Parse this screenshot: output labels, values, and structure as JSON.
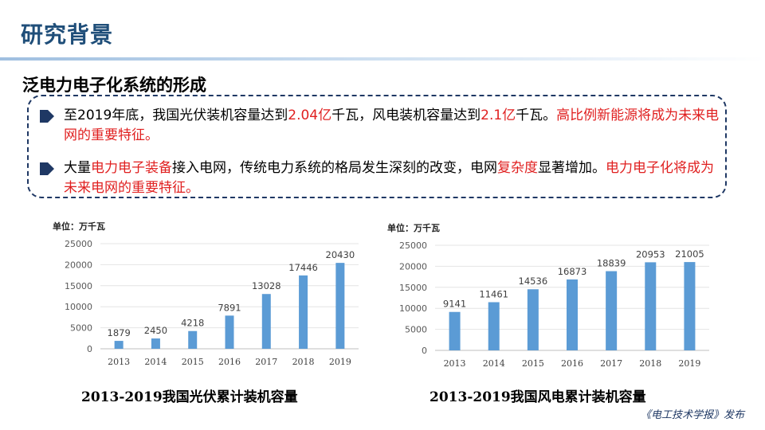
{
  "slide": {
    "title": "研究背景",
    "subtitle": "泛电力电子化系统的形成",
    "bullet1": {
      "p1": "至2019年底，我国光伏装机容量达到",
      "v1": "2.04亿",
      "p2": "千瓦，风电装机容量达到",
      "v2": "2.1亿",
      "p3": "千瓦。",
      "p4": "高比例新能源将成为未来电网的重要特征。"
    },
    "bullet2": {
      "p1": "大量",
      "v1": "电力电子装备",
      "p2": "接入电网，传统电力系统的格局发生深刻的改变，电网",
      "v2": "复杂度",
      "p3": "显著增加。",
      "p4": "电力电子化将成为未来电网的重要特征。"
    },
    "publisher": "《电工技术学报》发布",
    "accent_color": "#e02020",
    "bar_color": "#5b9bd5"
  },
  "chart_data": [
    {
      "type": "bar",
      "title": "2013-2019我国光伏累计装机容量",
      "unit_label": "单位：万千瓦",
      "categories": [
        "2013",
        "2014",
        "2015",
        "2016",
        "2017",
        "2018",
        "2019"
      ],
      "values": [
        1879,
        2450,
        4218,
        7891,
        13028,
        17446,
        20430
      ],
      "ylim": [
        0,
        25000
      ],
      "yticks": [
        0,
        5000,
        10000,
        15000,
        20000,
        25000
      ],
      "grid": true,
      "legend": "none"
    },
    {
      "type": "bar",
      "title": "2013-2019我国风电累计装机容量",
      "unit_label": "单位：万千瓦",
      "categories": [
        "2013",
        "2014",
        "2015",
        "2016",
        "2017",
        "2018",
        "2019"
      ],
      "values": [
        9141,
        11461,
        14536,
        16873,
        18839,
        20953,
        21005
      ],
      "ylim": [
        0,
        25000
      ],
      "yticks": [
        0,
        5000,
        10000,
        15000,
        20000,
        25000
      ],
      "grid": true,
      "legend": "none"
    }
  ]
}
